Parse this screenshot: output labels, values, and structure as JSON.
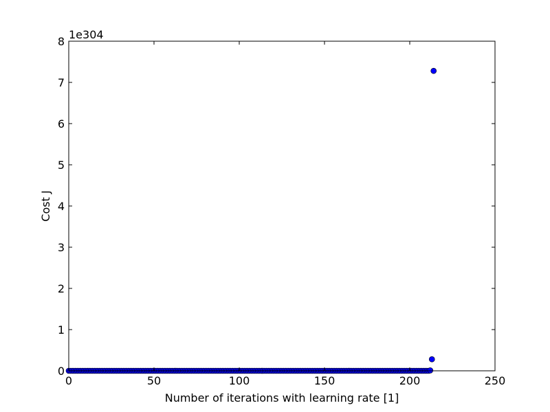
{
  "chart_data": {
    "type": "scatter",
    "title": "",
    "xlabel": "Number of iterations with learning rate [1]",
    "ylabel": "Cost J",
    "y_offset_label": "1e304",
    "xlim": [
      0,
      250
    ],
    "ylim": [
      0,
      8
    ],
    "x_ticks": [
      0,
      50,
      100,
      150,
      200,
      250
    ],
    "y_ticks": [
      0,
      1,
      2,
      3,
      4,
      5,
      6,
      7,
      8
    ],
    "y_scale_note": "y values in units of 1e304",
    "grid": false,
    "legend": "none",
    "marker_color": "#0000ff",
    "x": [
      0,
      1,
      2,
      3,
      4,
      5,
      6,
      7,
      8,
      9,
      10,
      11,
      12,
      13,
      14,
      15,
      16,
      17,
      18,
      19,
      20,
      21,
      22,
      23,
      24,
      25,
      26,
      27,
      28,
      29,
      30,
      31,
      32,
      33,
      34,
      35,
      36,
      37,
      38,
      39,
      40,
      41,
      42,
      43,
      44,
      45,
      46,
      47,
      48,
      49,
      50,
      51,
      52,
      53,
      54,
      55,
      56,
      57,
      58,
      59,
      60,
      61,
      62,
      63,
      64,
      65,
      66,
      67,
      68,
      69,
      70,
      71,
      72,
      73,
      74,
      75,
      76,
      77,
      78,
      79,
      80,
      81,
      82,
      83,
      84,
      85,
      86,
      87,
      88,
      89,
      90,
      91,
      92,
      93,
      94,
      95,
      96,
      97,
      98,
      99,
      100,
      101,
      102,
      103,
      104,
      105,
      106,
      107,
      108,
      109,
      110,
      111,
      112,
      113,
      114,
      115,
      116,
      117,
      118,
      119,
      120,
      121,
      122,
      123,
      124,
      125,
      126,
      127,
      128,
      129,
      130,
      131,
      132,
      133,
      134,
      135,
      136,
      137,
      138,
      139,
      140,
      141,
      142,
      143,
      144,
      145,
      146,
      147,
      148,
      149,
      150,
      151,
      152,
      153,
      154,
      155,
      156,
      157,
      158,
      159,
      160,
      161,
      162,
      163,
      164,
      165,
      166,
      167,
      168,
      169,
      170,
      171,
      172,
      173,
      174,
      175,
      176,
      177,
      178,
      179,
      180,
      181,
      182,
      183,
      184,
      185,
      186,
      187,
      188,
      189,
      190,
      191,
      192,
      193,
      194,
      195,
      196,
      197,
      198,
      199,
      200,
      201,
      202,
      203,
      204,
      205,
      206,
      207,
      208,
      209,
      210,
      211,
      212,
      213,
      214
    ],
    "y": [
      0,
      0,
      0,
      0,
      0,
      0,
      0,
      0,
      0,
      0,
      0,
      0,
      0,
      0,
      0,
      0,
      0,
      0,
      0,
      0,
      0,
      0,
      0,
      0,
      0,
      0,
      0,
      0,
      0,
      0,
      0,
      0,
      0,
      0,
      0,
      0,
      0,
      0,
      0,
      0,
      0,
      0,
      0,
      0,
      0,
      0,
      0,
      0,
      0,
      0,
      0,
      0,
      0,
      0,
      0,
      0,
      0,
      0,
      0,
      0,
      0,
      0,
      0,
      0,
      0,
      0,
      0,
      0,
      0,
      0,
      0,
      0,
      0,
      0,
      0,
      0,
      0,
      0,
      0,
      0,
      0,
      0,
      0,
      0,
      0,
      0,
      0,
      0,
      0,
      0,
      0,
      0,
      0,
      0,
      0,
      0,
      0,
      0,
      0,
      0,
      0,
      0,
      0,
      0,
      0,
      0,
      0,
      0,
      0,
      0,
      0,
      0,
      0,
      0,
      0,
      0,
      0,
      0,
      0,
      0,
      0,
      0,
      0,
      0,
      0,
      0,
      0,
      0,
      0,
      0,
      0,
      0,
      0,
      0,
      0,
      0,
      0,
      0,
      0,
      0,
      0,
      0,
      0,
      0,
      0,
      0,
      0,
      0,
      0,
      0,
      0,
      0,
      0,
      0,
      0,
      0,
      0,
      0,
      0,
      0,
      0,
      0,
      0,
      0,
      0,
      0,
      0,
      0,
      0,
      0,
      0,
      0,
      0,
      0,
      0,
      0,
      0,
      0,
      0,
      0,
      0,
      0,
      0,
      0,
      0,
      0,
      0,
      0,
      0,
      0,
      0,
      0,
      0,
      0,
      0,
      0,
      0,
      0,
      0,
      0,
      0,
      0,
      0,
      0,
      0,
      0,
      0,
      0,
      0,
      0,
      0,
      0,
      0.01,
      0.28,
      7.28
    ]
  }
}
